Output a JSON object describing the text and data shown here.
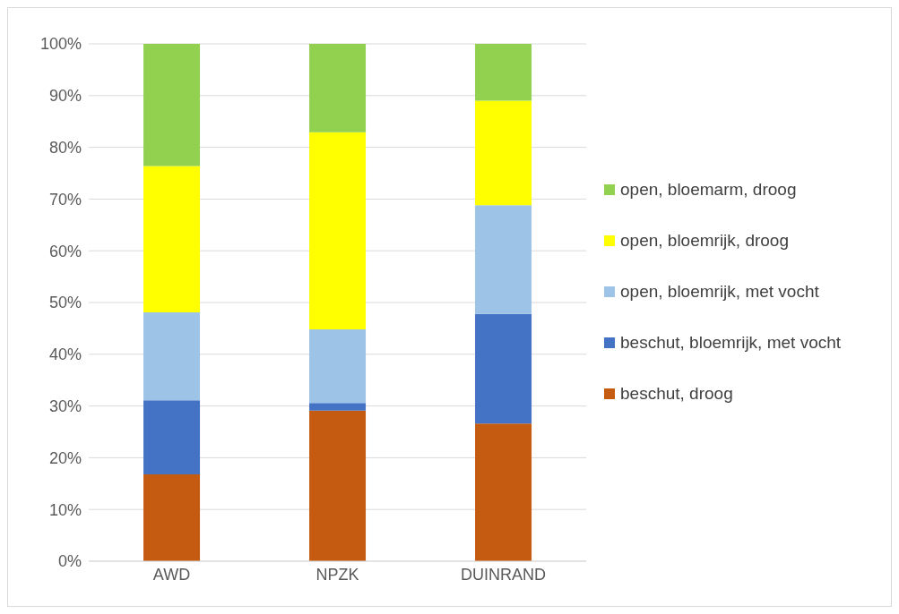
{
  "chart_data": {
    "type": "bar",
    "stacked": true,
    "categories": [
      "AWD",
      "NPZK",
      "DUINRAND"
    ],
    "series": [
      {
        "name": "beschut, droog",
        "color": "#c55a11",
        "values": [
          16.8,
          29.1,
          26.6
        ]
      },
      {
        "name": "beschut, bloemrijk, met vocht",
        "color": "#4472c4",
        "values": [
          14.3,
          1.5,
          21.2
        ]
      },
      {
        "name": "open, bloemrijk, met vocht",
        "color": "#9dc3e6",
        "values": [
          17.0,
          14.2,
          21.0
        ]
      },
      {
        "name": "open, bloemrijk, droog",
        "color": "#ffff00",
        "values": [
          28.3,
          38.1,
          20.2
        ]
      },
      {
        "name": "open, bloemarm, droog",
        "color": "#92d050",
        "values": [
          23.6,
          17.1,
          11.0
        ]
      }
    ],
    "ylim": [
      0,
      100
    ],
    "yticks": [
      {
        "value": 0,
        "label": "0%"
      },
      {
        "value": 10,
        "label": "10%"
      },
      {
        "value": 20,
        "label": "20%"
      },
      {
        "value": 30,
        "label": "30%"
      },
      {
        "value": 40,
        "label": "40%"
      },
      {
        "value": 50,
        "label": "50%"
      },
      {
        "value": 60,
        "label": "60%"
      },
      {
        "value": 70,
        "label": "70%"
      },
      {
        "value": 80,
        "label": "80%"
      },
      {
        "value": 90,
        "label": "90%"
      },
      {
        "value": 100,
        "label": "100%"
      }
    ],
    "grid": "y",
    "legend": "right"
  }
}
